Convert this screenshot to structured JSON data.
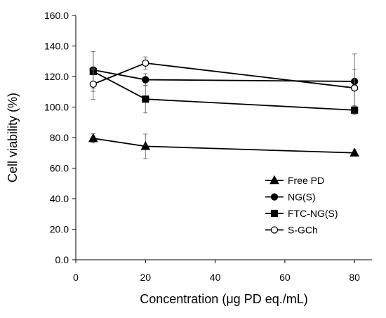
{
  "chart_data": {
    "type": "line",
    "xlabel": "Concentration (μg PD eq./mL)",
    "ylabel": "Cell viability (%)",
    "xlim": [
      0,
      85
    ],
    "ylim": [
      0,
      160
    ],
    "x_ticks": [
      0,
      20,
      40,
      60,
      80
    ],
    "y_ticks": [
      0,
      20,
      40,
      60,
      80,
      100,
      120,
      140,
      160
    ],
    "x_tick_labels": [
      "0",
      "20",
      "40",
      "60",
      "80"
    ],
    "y_tick_labels": [
      "0.0",
      "20.0",
      "40.0",
      "60.0",
      "80.0",
      "100.0",
      "120.0",
      "140.0",
      "160.0"
    ],
    "grid": false,
    "legend_position": "lower-right",
    "series": [
      {
        "name": "Free PD",
        "marker": "triangle",
        "filled": true,
        "x": [
          5,
          20,
          80
        ],
        "values": [
          79.5,
          74.3,
          70.0
        ],
        "errors": [
          3.0,
          8.0,
          2.0
        ]
      },
      {
        "name": "NG(S)",
        "marker": "circle",
        "filled": true,
        "x": [
          5,
          20,
          80
        ],
        "values": [
          124.3,
          117.9,
          116.8
        ],
        "errors": [
          12.0,
          4.0,
          18.0
        ]
      },
      {
        "name": "FTC-NG(S)",
        "marker": "square",
        "filled": true,
        "x": [
          5,
          20,
          80
        ],
        "values": [
          123.3,
          105.2,
          98.0
        ],
        "errors": [
          13.0,
          9.0,
          3.0
        ]
      },
      {
        "name": "S-GCh",
        "marker": "circle",
        "filled": false,
        "x": [
          5,
          20,
          80
        ],
        "values": [
          115.0,
          128.8,
          112.5
        ],
        "errors": [
          10.0,
          4.0,
          12.0
        ]
      }
    ]
  }
}
